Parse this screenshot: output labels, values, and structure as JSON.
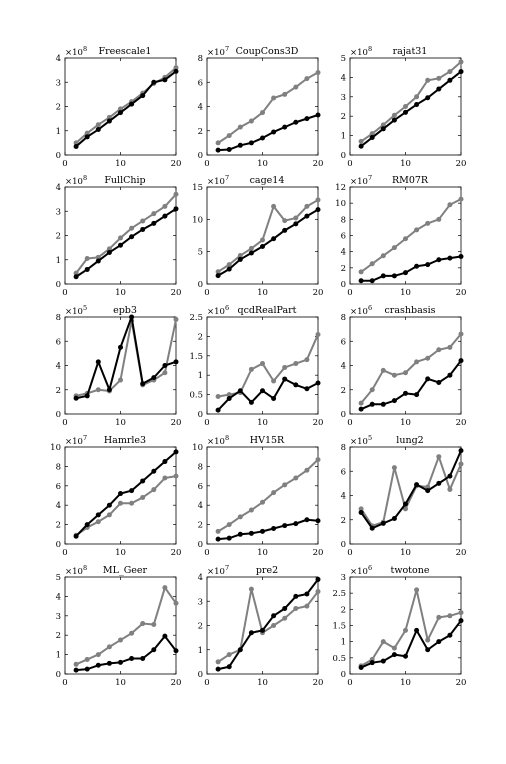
{
  "style": {
    "series_colors": [
      "#000000",
      "#808080"
    ],
    "background": "#ffffff"
  },
  "chart_data": [
    {
      "type": "line",
      "title": "Freescale1",
      "multiplier": "×10",
      "exponent": "8",
      "ylim": [
        0,
        4
      ],
      "yticks": [
        "0",
        "1",
        "2",
        "3",
        "4"
      ],
      "xlim": [
        0,
        20
      ],
      "xticks": [
        "0",
        "10",
        "20"
      ],
      "grid": false,
      "x": [
        2,
        4,
        6,
        8,
        10,
        12,
        14,
        16,
        18,
        20
      ],
      "series": [
        {
          "values": [
            0.35,
            0.75,
            1.05,
            1.4,
            1.75,
            2.1,
            2.45,
            3.0,
            3.1,
            3.45
          ]
        },
        {
          "values": [
            0.5,
            0.9,
            1.25,
            1.55,
            1.9,
            2.2,
            2.55,
            2.95,
            3.2,
            3.6
          ]
        }
      ]
    },
    {
      "type": "line",
      "title": "CoupCons3D",
      "multiplier": "×10",
      "exponent": "7",
      "ylim": [
        0,
        8
      ],
      "yticks": [
        "0",
        "2",
        "4",
        "6",
        "8"
      ],
      "xlim": [
        0,
        20
      ],
      "xticks": [
        "0",
        "10",
        "20"
      ],
      "grid": false,
      "x": [
        2,
        4,
        6,
        8,
        10,
        12,
        14,
        16,
        18,
        20
      ],
      "series": [
        {
          "values": [
            0.4,
            0.45,
            0.8,
            1.0,
            1.4,
            1.9,
            2.3,
            2.7,
            3.0,
            3.3
          ]
        },
        {
          "values": [
            1.0,
            1.6,
            2.3,
            2.8,
            3.5,
            4.7,
            5.0,
            5.6,
            6.3,
            6.8
          ]
        }
      ]
    },
    {
      "type": "line",
      "title": "rajat31",
      "multiplier": "×10",
      "exponent": "8",
      "ylim": [
        0,
        5
      ],
      "yticks": [
        "0",
        "1",
        "2",
        "3",
        "4",
        "5"
      ],
      "xlim": [
        0,
        20
      ],
      "xticks": [
        "0",
        "10",
        "20"
      ],
      "grid": false,
      "x": [
        2,
        4,
        6,
        8,
        10,
        12,
        14,
        16,
        18,
        20
      ],
      "series": [
        {
          "values": [
            0.45,
            0.9,
            1.35,
            1.8,
            2.2,
            2.6,
            2.95,
            3.4,
            3.85,
            4.3
          ]
        },
        {
          "values": [
            0.7,
            1.1,
            1.55,
            2.05,
            2.5,
            3.0,
            3.85,
            3.95,
            4.3,
            4.8
          ]
        }
      ]
    },
    {
      "type": "line",
      "title": "FullChip",
      "multiplier": "×10",
      "exponent": "8",
      "ylim": [
        0,
        4
      ],
      "yticks": [
        "0",
        "1",
        "2",
        "3",
        "4"
      ],
      "xlim": [
        0,
        20
      ],
      "xticks": [
        "0",
        "10",
        "20"
      ],
      "grid": false,
      "x": [
        2,
        4,
        6,
        8,
        10,
        12,
        14,
        16,
        18,
        20
      ],
      "series": [
        {
          "values": [
            0.3,
            0.6,
            0.95,
            1.3,
            1.6,
            1.95,
            2.25,
            2.5,
            2.8,
            3.1
          ]
        },
        {
          "values": [
            0.45,
            1.05,
            1.1,
            1.45,
            1.9,
            2.3,
            2.6,
            2.9,
            3.2,
            3.7
          ]
        }
      ]
    },
    {
      "type": "line",
      "title": "cage14",
      "multiplier": "×10",
      "exponent": "7",
      "ylim": [
        0,
        15
      ],
      "yticks": [
        "0",
        "5",
        "10",
        "15"
      ],
      "xlim": [
        0,
        20
      ],
      "xticks": [
        "0",
        "10",
        "20"
      ],
      "grid": false,
      "x": [
        2,
        4,
        6,
        8,
        10,
        12,
        14,
        16,
        18,
        20
      ],
      "series": [
        {
          "values": [
            1.3,
            2.3,
            3.8,
            4.8,
            5.8,
            7.0,
            8.3,
            9.3,
            10.5,
            11.5
          ]
        },
        {
          "values": [
            1.9,
            3.0,
            4.4,
            5.5,
            6.8,
            12.0,
            9.8,
            10.2,
            12.0,
            13.0
          ]
        }
      ]
    },
    {
      "type": "line",
      "title": "RM07R",
      "multiplier": "×10",
      "exponent": "7",
      "ylim": [
        0,
        12
      ],
      "yticks": [
        "0",
        "2",
        "4",
        "6",
        "8",
        "10",
        "12"
      ],
      "xlim": [
        0,
        20
      ],
      "xticks": [
        "0",
        "10",
        "20"
      ],
      "grid": false,
      "x": [
        2,
        4,
        6,
        8,
        10,
        12,
        14,
        16,
        18,
        20
      ],
      "series": [
        {
          "values": [
            0.4,
            0.4,
            1.0,
            1.0,
            1.4,
            2.2,
            2.4,
            3.0,
            3.2,
            3.4
          ]
        },
        {
          "values": [
            1.5,
            2.5,
            3.5,
            4.5,
            5.6,
            6.7,
            7.5,
            8.0,
            9.8,
            10.5
          ]
        }
      ]
    },
    {
      "type": "line",
      "title": "epb3",
      "multiplier": "×10",
      "exponent": "5",
      "ylim": [
        0,
        8
      ],
      "yticks": [
        "0",
        "2",
        "4",
        "6",
        "8"
      ],
      "xlim": [
        0,
        20
      ],
      "xticks": [
        "0",
        "10",
        "20"
      ],
      "grid": false,
      "x": [
        2,
        4,
        6,
        8,
        10,
        12,
        14,
        16,
        18,
        20
      ],
      "series": [
        {
          "values": [
            1.3,
            1.5,
            4.3,
            2.0,
            5.5,
            8.0,
            2.5,
            3.0,
            4.0,
            4.3
          ]
        },
        {
          "values": [
            1.5,
            1.7,
            2.0,
            1.9,
            2.8,
            7.7,
            2.4,
            2.8,
            3.4,
            7.8
          ]
        }
      ]
    },
    {
      "type": "line",
      "title": "qcdRealPart",
      "multiplier": "×10",
      "exponent": "6",
      "ylim": [
        0,
        2.5
      ],
      "yticks": [
        "0",
        "0.5",
        "1",
        "1.5",
        "2",
        "2.5"
      ],
      "xlim": [
        0,
        20
      ],
      "xticks": [
        "0",
        "10",
        "20"
      ],
      "grid": false,
      "x": [
        2,
        4,
        6,
        8,
        10,
        12,
        14,
        16,
        18,
        20
      ],
      "series": [
        {
          "values": [
            0.1,
            0.4,
            0.6,
            0.3,
            0.6,
            0.4,
            0.9,
            0.75,
            0.65,
            0.8
          ]
        },
        {
          "values": [
            0.45,
            0.5,
            0.55,
            1.15,
            1.3,
            0.85,
            1.2,
            1.3,
            1.4,
            2.05
          ]
        }
      ]
    },
    {
      "type": "line",
      "title": "crashbasis",
      "multiplier": "×10",
      "exponent": "6",
      "ylim": [
        0,
        8
      ],
      "yticks": [
        "0",
        "2",
        "4",
        "6",
        "8"
      ],
      "xlim": [
        0,
        20
      ],
      "xticks": [
        "0",
        "10",
        "20"
      ],
      "grid": false,
      "x": [
        2,
        4,
        6,
        8,
        10,
        12,
        14,
        16,
        18,
        20
      ],
      "series": [
        {
          "values": [
            0.4,
            0.8,
            0.8,
            1.1,
            1.7,
            1.6,
            2.9,
            2.6,
            3.2,
            4.4
          ]
        },
        {
          "values": [
            0.9,
            2.0,
            3.6,
            3.2,
            3.4,
            4.3,
            4.6,
            5.3,
            5.5,
            6.6
          ]
        }
      ]
    },
    {
      "type": "line",
      "title": "Hamrle3",
      "multiplier": "×10",
      "exponent": "7",
      "ylim": [
        0,
        10
      ],
      "yticks": [
        "0",
        "2",
        "4",
        "6",
        "8",
        "10"
      ],
      "xlim": [
        0,
        20
      ],
      "xticks": [
        "0",
        "10",
        "20"
      ],
      "grid": false,
      "x": [
        2,
        4,
        6,
        8,
        10,
        12,
        14,
        16,
        18,
        20
      ],
      "series": [
        {
          "values": [
            0.8,
            2.0,
            3.0,
            4.0,
            5.2,
            5.5,
            6.5,
            7.5,
            8.5,
            9.5
          ]
        },
        {
          "values": [
            0.9,
            1.7,
            2.3,
            3.0,
            4.2,
            4.2,
            4.8,
            5.6,
            6.8,
            7.0
          ]
        }
      ]
    },
    {
      "type": "line",
      "title": "HV15R",
      "multiplier": "×10",
      "exponent": "8",
      "ylim": [
        0,
        10
      ],
      "yticks": [
        "0",
        "2",
        "4",
        "6",
        "8",
        "10"
      ],
      "xlim": [
        0,
        20
      ],
      "xticks": [
        "0",
        "10",
        "20"
      ],
      "grid": false,
      "x": [
        2,
        4,
        6,
        8,
        10,
        12,
        14,
        16,
        18,
        20
      ],
      "series": [
        {
          "values": [
            0.5,
            0.6,
            1.0,
            1.1,
            1.3,
            1.6,
            1.9,
            2.1,
            2.5,
            2.4
          ]
        },
        {
          "values": [
            1.3,
            2.0,
            2.8,
            3.5,
            4.3,
            5.3,
            6.1,
            6.8,
            7.6,
            8.7
          ]
        }
      ]
    },
    {
      "type": "line",
      "title": "lung2",
      "multiplier": "×10",
      "exponent": "5",
      "ylim": [
        0,
        8
      ],
      "yticks": [
        "0",
        "2",
        "4",
        "6",
        "8"
      ],
      "xlim": [
        0,
        20
      ],
      "xticks": [
        "0",
        "10",
        "20"
      ],
      "grid": false,
      "x": [
        2,
        4,
        6,
        8,
        10,
        12,
        14,
        16,
        18,
        20
      ],
      "series": [
        {
          "values": [
            2.6,
            1.3,
            1.7,
            2.1,
            3.3,
            4.9,
            4.4,
            5.0,
            5.6,
            7.7
          ]
        },
        {
          "values": [
            2.9,
            1.5,
            1.8,
            6.3,
            2.9,
            4.8,
            4.7,
            7.2,
            4.5,
            6.6
          ]
        }
      ]
    },
    {
      "type": "line",
      "title": "ML_Geer",
      "multiplier": "×10",
      "exponent": "8",
      "ylim": [
        0,
        5
      ],
      "yticks": [
        "0",
        "1",
        "2",
        "3",
        "4",
        "5"
      ],
      "xlim": [
        0,
        20
      ],
      "xticks": [
        "0",
        "10",
        "20"
      ],
      "grid": false,
      "x": [
        2,
        4,
        6,
        8,
        10,
        12,
        14,
        16,
        18,
        20
      ],
      "series": [
        {
          "values": [
            0.2,
            0.25,
            0.45,
            0.55,
            0.6,
            0.8,
            0.8,
            1.25,
            1.95,
            1.2
          ]
        },
        {
          "values": [
            0.5,
            0.75,
            1.0,
            1.4,
            1.75,
            2.1,
            2.6,
            2.55,
            4.45,
            3.65
          ]
        }
      ]
    },
    {
      "type": "line",
      "title": "pre2",
      "multiplier": "×10",
      "exponent": "7",
      "ylim": [
        0,
        4
      ],
      "yticks": [
        "0",
        "1",
        "2",
        "3",
        "4"
      ],
      "xlim": [
        0,
        20
      ],
      "xticks": [
        "0",
        "10",
        "20"
      ],
      "grid": false,
      "x": [
        2,
        4,
        6,
        8,
        10,
        12,
        14,
        16,
        18,
        20
      ],
      "series": [
        {
          "values": [
            0.2,
            0.3,
            1.0,
            1.7,
            1.8,
            2.4,
            2.7,
            3.2,
            3.3,
            3.9
          ]
        },
        {
          "values": [
            0.5,
            0.8,
            1.0,
            3.5,
            1.7,
            2.0,
            2.3,
            2.7,
            2.8,
            3.4
          ]
        }
      ]
    },
    {
      "type": "line",
      "title": "twotone",
      "multiplier": "×10",
      "exponent": "6",
      "ylim": [
        0,
        3
      ],
      "yticks": [
        "0",
        "0.5",
        "1",
        "1.5",
        "2",
        "2.5",
        "3"
      ],
      "xlim": [
        0,
        20
      ],
      "xticks": [
        "0",
        "10",
        "20"
      ],
      "grid": false,
      "x": [
        2,
        4,
        6,
        8,
        10,
        12,
        14,
        16,
        18,
        20
      ],
      "series": [
        {
          "values": [
            0.2,
            0.35,
            0.4,
            0.6,
            0.55,
            1.35,
            0.75,
            1.0,
            1.2,
            1.65
          ]
        },
        {
          "values": [
            0.25,
            0.45,
            1.0,
            0.8,
            1.35,
            2.6,
            1.05,
            1.75,
            1.8,
            1.9
          ]
        }
      ]
    }
  ]
}
